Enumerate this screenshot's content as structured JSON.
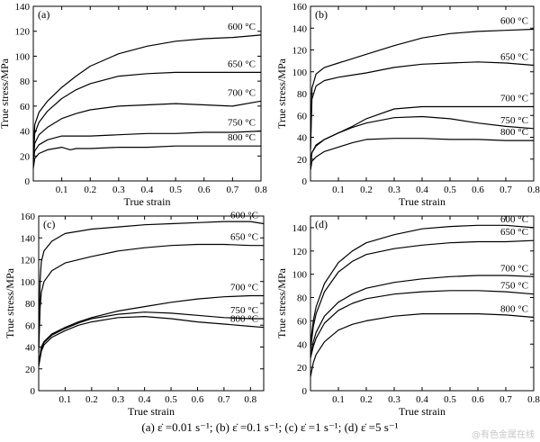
{
  "caption": {
    "text": "(a)  ε̇ =0.01 s⁻¹; (b)  ε̇ =0.1 s⁻¹; (c)  ε̇ =1 s⁻¹; (d)  ε̇ =5 s⁻¹"
  },
  "watermark": "@有色金属在线",
  "line_color": "#000000",
  "chart_data": [
    {
      "type": "line",
      "panel_label": "(a)",
      "xlabel": "True strain",
      "ylabel": "True stress/MPa",
      "xlim": [
        0,
        0.8
      ],
      "ylim": [
        0,
        140
      ],
      "xticks": [
        "0.1",
        "0.2",
        "0.3",
        "0.4",
        "0.5",
        "0.6",
        "0.7",
        "0.8"
      ],
      "yticks": [
        "0",
        "20",
        "40",
        "60",
        "80",
        "100",
        "120",
        "140"
      ],
      "series": [
        {
          "name": "600 °C",
          "x": [
            0,
            0.005,
            0.02,
            0.05,
            0.1,
            0.15,
            0.2,
            0.3,
            0.4,
            0.5,
            0.6,
            0.7,
            0.8
          ],
          "y": [
            20,
            45,
            55,
            64,
            75,
            84,
            92,
            102,
            108,
            112,
            114,
            115,
            117
          ]
        },
        {
          "name": "650 °C",
          "x": [
            0,
            0.005,
            0.02,
            0.05,
            0.1,
            0.15,
            0.2,
            0.3,
            0.4,
            0.5,
            0.6,
            0.7,
            0.8
          ],
          "y": [
            18,
            38,
            47,
            56,
            66,
            73,
            78,
            84,
            86,
            87,
            87,
            87,
            87
          ]
        },
        {
          "name": "700 °C",
          "x": [
            0,
            0.005,
            0.02,
            0.05,
            0.1,
            0.15,
            0.2,
            0.3,
            0.4,
            0.5,
            0.6,
            0.7,
            0.8
          ],
          "y": [
            16,
            30,
            37,
            43,
            50,
            54,
            57,
            60,
            61,
            62,
            61,
            60,
            64
          ]
        },
        {
          "name": "750 °C",
          "x": [
            0,
            0.005,
            0.02,
            0.05,
            0.1,
            0.15,
            0.2,
            0.3,
            0.4,
            0.5,
            0.6,
            0.7,
            0.8
          ],
          "y": [
            15,
            24,
            29,
            33,
            36,
            36,
            36,
            37,
            38,
            38,
            39,
            39,
            40
          ]
        },
        {
          "name": "800 °C",
          "x": [
            0,
            0.005,
            0.02,
            0.05,
            0.1,
            0.13,
            0.15,
            0.2,
            0.3,
            0.4,
            0.5,
            0.6,
            0.7,
            0.8
          ],
          "y": [
            10,
            18,
            22,
            25,
            27,
            25,
            26,
            26,
            27,
            27,
            28,
            28,
            28,
            28
          ]
        }
      ]
    },
    {
      "type": "line",
      "panel_label": "(b)",
      "xlabel": "True strain",
      "ylabel": "True stress/MPa",
      "xlim": [
        0,
        0.8
      ],
      "ylim": [
        0,
        160
      ],
      "xticks": [
        "0.1",
        "0.2",
        "0.3",
        "0.4",
        "0.5",
        "0.6",
        "0.7",
        "0.8"
      ],
      "yticks": [
        "0",
        "20",
        "40",
        "60",
        "80",
        "100",
        "120",
        "140",
        "160"
      ],
      "series": [
        {
          "name": "600 °C",
          "x": [
            0,
            0.005,
            0.02,
            0.05,
            0.1,
            0.15,
            0.2,
            0.3,
            0.4,
            0.5,
            0.6,
            0.7,
            0.8
          ],
          "y": [
            30,
            85,
            98,
            104,
            108,
            112,
            116,
            124,
            131,
            135,
            137,
            138,
            139
          ]
        },
        {
          "name": "650 °C",
          "x": [
            0,
            0.005,
            0.02,
            0.05,
            0.1,
            0.15,
            0.2,
            0.3,
            0.4,
            0.5,
            0.6,
            0.7,
            0.8
          ],
          "y": [
            28,
            75,
            87,
            92,
            95,
            97,
            99,
            104,
            107,
            108,
            109,
            108,
            106
          ]
        },
        {
          "name": "700 °C",
          "x": [
            0,
            0.005,
            0.02,
            0.05,
            0.1,
            0.15,
            0.2,
            0.3,
            0.4,
            0.5,
            0.6,
            0.7,
            0.8
          ],
          "y": [
            15,
            26,
            33,
            38,
            44,
            50,
            57,
            66,
            68,
            68,
            68,
            68,
            68
          ]
        },
        {
          "name": "750 °C",
          "x": [
            0,
            0.005,
            0.02,
            0.05,
            0.1,
            0.15,
            0.2,
            0.3,
            0.4,
            0.5,
            0.6,
            0.7,
            0.8
          ],
          "y": [
            15,
            26,
            32,
            38,
            44,
            49,
            53,
            58,
            59,
            57,
            53,
            50,
            48
          ]
        },
        {
          "name": "800 °C",
          "x": [
            0,
            0.005,
            0.02,
            0.05,
            0.1,
            0.15,
            0.2,
            0.3,
            0.4,
            0.5,
            0.6,
            0.7,
            0.8
          ],
          "y": [
            10,
            18,
            22,
            27,
            31,
            35,
            38,
            39,
            39,
            38,
            38,
            37,
            37
          ]
        }
      ]
    },
    {
      "type": "line",
      "panel_label": "(c)",
      "xlabel": "True strain",
      "ylabel": "True stress/MPa",
      "xlim": [
        0,
        0.85
      ],
      "ylim": [
        0,
        160
      ],
      "xticks": [
        "0.1",
        "0.2",
        "0.3",
        "0.4",
        "0.5",
        "0.6",
        "0.7",
        "0.8"
      ],
      "yticks": [
        "0",
        "20",
        "40",
        "60",
        "80",
        "100",
        "120",
        "140",
        "160"
      ],
      "series": [
        {
          "name": "600 °C",
          "x": [
            0,
            0.005,
            0.01,
            0.02,
            0.05,
            0.1,
            0.2,
            0.3,
            0.4,
            0.5,
            0.6,
            0.7,
            0.8,
            0.85
          ],
          "y": [
            40,
            100,
            118,
            128,
            137,
            144,
            148,
            150,
            152,
            153,
            154,
            155,
            155,
            153
          ]
        },
        {
          "name": "650 °C",
          "x": [
            0,
            0.005,
            0.01,
            0.02,
            0.05,
            0.1,
            0.2,
            0.3,
            0.4,
            0.5,
            0.6,
            0.7,
            0.8,
            0.85
          ],
          "y": [
            35,
            75,
            90,
            100,
            110,
            117,
            123,
            128,
            131,
            133,
            134,
            134,
            133,
            133
          ]
        },
        {
          "name": "700 °C",
          "x": [
            0,
            0.01,
            0.02,
            0.05,
            0.1,
            0.15,
            0.2,
            0.3,
            0.4,
            0.5,
            0.6,
            0.7,
            0.8,
            0.85
          ],
          "y": [
            25,
            40,
            45,
            52,
            58,
            63,
            67,
            73,
            77,
            81,
            84,
            86,
            87,
            87
          ]
        },
        {
          "name": "750 °C",
          "x": [
            0,
            0.01,
            0.02,
            0.05,
            0.1,
            0.15,
            0.2,
            0.3,
            0.4,
            0.5,
            0.6,
            0.7,
            0.8,
            0.85
          ],
          "y": [
            25,
            38,
            44,
            51,
            57,
            62,
            66,
            70,
            72,
            71,
            69,
            67,
            66,
            66
          ]
        },
        {
          "name": "800 °C",
          "x": [
            0,
            0.01,
            0.02,
            0.05,
            0.1,
            0.15,
            0.2,
            0.3,
            0.4,
            0.5,
            0.6,
            0.7,
            0.8,
            0.85
          ],
          "y": [
            22,
            36,
            42,
            49,
            55,
            60,
            63,
            67,
            68,
            66,
            63,
            61,
            59,
            58
          ]
        }
      ]
    },
    {
      "type": "line",
      "panel_label": "(d)",
      "xlabel": "True strain",
      "ylabel": "True stress/MPa",
      "xlim": [
        0,
        0.8
      ],
      "ylim": [
        0,
        150
      ],
      "xticks": [
        "0.1",
        "0.2",
        "0.3",
        "0.4",
        "0.5",
        "0.6",
        "0.7",
        "0.8"
      ],
      "yticks": [
        "0",
        "20",
        "40",
        "60",
        "80",
        "100",
        "120",
        "140"
      ],
      "series": [
        {
          "name": "600 °C",
          "x": [
            0,
            0.01,
            0.02,
            0.05,
            0.1,
            0.15,
            0.2,
            0.3,
            0.4,
            0.5,
            0.6,
            0.7,
            0.8
          ],
          "y": [
            40,
            60,
            72,
            92,
            110,
            120,
            127,
            134,
            139,
            141,
            142,
            142,
            140
          ]
        },
        {
          "name": "650 °C",
          "x": [
            0,
            0.01,
            0.02,
            0.05,
            0.1,
            0.15,
            0.2,
            0.3,
            0.4,
            0.5,
            0.6,
            0.7,
            0.8
          ],
          "y": [
            35,
            55,
            66,
            85,
            102,
            111,
            117,
            122,
            125,
            127,
            128,
            128,
            129
          ]
        },
        {
          "name": "700 °C",
          "x": [
            0,
            0.01,
            0.02,
            0.05,
            0.1,
            0.15,
            0.2,
            0.3,
            0.4,
            0.5,
            0.6,
            0.7,
            0.8
          ],
          "y": [
            30,
            42,
            50,
            64,
            76,
            83,
            88,
            93,
            96,
            98,
            99,
            99,
            98
          ]
        },
        {
          "name": "750 °C",
          "x": [
            0,
            0.01,
            0.02,
            0.05,
            0.1,
            0.15,
            0.2,
            0.3,
            0.4,
            0.5,
            0.6,
            0.7,
            0.8
          ],
          "y": [
            28,
            38,
            45,
            58,
            69,
            75,
            79,
            83,
            85,
            86,
            86,
            85,
            83
          ]
        },
        {
          "name": "800 °C",
          "x": [
            0,
            0.01,
            0.02,
            0.05,
            0.1,
            0.15,
            0.2,
            0.3,
            0.4,
            0.5,
            0.6,
            0.7,
            0.8
          ],
          "y": [
            12,
            24,
            31,
            42,
            52,
            57,
            60,
            64,
            66,
            66,
            66,
            65,
            63
          ]
        }
      ]
    }
  ]
}
